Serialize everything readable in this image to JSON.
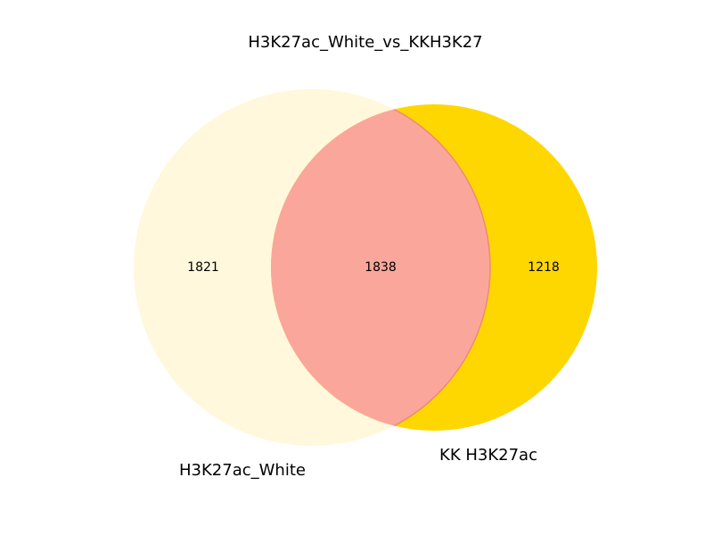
{
  "title": "H3K27ac_White_vs_KKH3K27",
  "sets": [
    {
      "name": "H3K27ac_White",
      "color": "#fff8dc"
    },
    {
      "name": "KK H3K27ac",
      "color": "#ffd700"
    }
  ],
  "intersection_color": "#faa69b",
  "counts": {
    "white_only": "1821",
    "both": "1838",
    "kk_only": "1218"
  }
}
